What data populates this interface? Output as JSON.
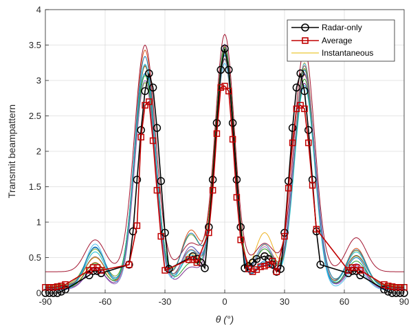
{
  "chart_data": {
    "type": "line",
    "title": "",
    "xlabel": "θ (°)",
    "ylabel": "Transmit beampattern",
    "xlim": [
      -90,
      90
    ],
    "ylim": [
      0,
      4
    ],
    "xticks": [
      -90,
      -60,
      -30,
      0,
      30,
      60,
      90
    ],
    "yticks": [
      0,
      0.5,
      1,
      1.5,
      2,
      2.5,
      3,
      3.5,
      4
    ],
    "grid": true,
    "legend_position": "top-right",
    "series": [
      {
        "name": "Radar-only",
        "color": "#000000",
        "marker": "circle",
        "points": [
          [
            -90,
            0.0
          ],
          [
            -88,
            0.0
          ],
          [
            -86,
            0.0
          ],
          [
            -84,
            0.0
          ],
          [
            -82,
            0.02
          ],
          [
            -80,
            0.05
          ],
          [
            -68,
            0.25
          ],
          [
            -66,
            0.31
          ],
          [
            -64,
            0.31
          ],
          [
            -62,
            0.28
          ],
          [
            -48,
            0.4
          ],
          [
            -46,
            0.87
          ],
          [
            -44,
            1.6
          ],
          [
            -42,
            2.3
          ],
          [
            -40,
            2.85
          ],
          [
            -38,
            3.1
          ],
          [
            -36,
            2.9
          ],
          [
            -34,
            2.33
          ],
          [
            -32,
            1.58
          ],
          [
            -30,
            0.85
          ],
          [
            -28,
            0.34
          ],
          [
            -16,
            0.52
          ],
          [
            -14,
            0.48
          ],
          [
            -12,
            0.43
          ],
          [
            -10,
            0.35
          ],
          [
            -8,
            0.93
          ],
          [
            -6,
            1.6
          ],
          [
            -4,
            2.4
          ],
          [
            -2,
            3.15
          ],
          [
            0,
            3.45
          ],
          [
            2,
            3.15
          ],
          [
            4,
            2.4
          ],
          [
            6,
            1.6
          ],
          [
            8,
            0.93
          ],
          [
            10,
            0.35
          ],
          [
            12,
            0.38
          ],
          [
            14,
            0.43
          ],
          [
            16,
            0.48
          ],
          [
            20,
            0.52
          ],
          [
            22,
            0.48
          ],
          [
            24,
            0.4
          ],
          [
            26,
            0.3
          ],
          [
            28,
            0.34
          ],
          [
            30,
            0.85
          ],
          [
            32,
            1.58
          ],
          [
            34,
            2.33
          ],
          [
            36,
            2.9
          ],
          [
            38,
            3.1
          ],
          [
            40,
            2.85
          ],
          [
            42,
            2.3
          ],
          [
            44,
            1.6
          ],
          [
            46,
            0.87
          ],
          [
            48,
            0.4
          ],
          [
            62,
            0.28
          ],
          [
            64,
            0.31
          ],
          [
            66,
            0.31
          ],
          [
            68,
            0.25
          ],
          [
            80,
            0.05
          ],
          [
            82,
            0.02
          ],
          [
            84,
            0.0
          ],
          [
            86,
            0.0
          ],
          [
            88,
            0.0
          ],
          [
            90,
            0.0
          ]
        ]
      },
      {
        "name": "Average",
        "color": "#c00000",
        "marker": "square",
        "points": [
          [
            -90,
            0.08
          ],
          [
            -88,
            0.08
          ],
          [
            -86,
            0.08
          ],
          [
            -84,
            0.09
          ],
          [
            -82,
            0.1
          ],
          [
            -80,
            0.12
          ],
          [
            -68,
            0.32
          ],
          [
            -66,
            0.36
          ],
          [
            -64,
            0.36
          ],
          [
            -62,
            0.32
          ],
          [
            -48,
            0.4
          ],
          [
            -44,
            0.95
          ],
          [
            -42,
            2.2
          ],
          [
            -40,
            2.65
          ],
          [
            -38,
            2.7
          ],
          [
            -36,
            2.15
          ],
          [
            -34,
            1.45
          ],
          [
            -32,
            0.8
          ],
          [
            -30,
            0.32
          ],
          [
            -18,
            0.47
          ],
          [
            -16,
            0.47
          ],
          [
            -14,
            0.43
          ],
          [
            -8,
            0.85
          ],
          [
            -6,
            1.45
          ],
          [
            -4,
            2.25
          ],
          [
            -2,
            2.9
          ],
          [
            0,
            2.92
          ],
          [
            2,
            2.85
          ],
          [
            4,
            2.17
          ],
          [
            6,
            1.35
          ],
          [
            8,
            0.75
          ],
          [
            12,
            0.34
          ],
          [
            14,
            0.3
          ],
          [
            16,
            0.33
          ],
          [
            18,
            0.37
          ],
          [
            20,
            0.38
          ],
          [
            22,
            0.4
          ],
          [
            24,
            0.45
          ],
          [
            26,
            0.3
          ],
          [
            30,
            0.8
          ],
          [
            32,
            1.48
          ],
          [
            34,
            2.12
          ],
          [
            36,
            2.6
          ],
          [
            38,
            2.65
          ],
          [
            40,
            2.6
          ],
          [
            42,
            2.12
          ],
          [
            44,
            1.52
          ],
          [
            46,
            0.9
          ],
          [
            62,
            0.32
          ],
          [
            64,
            0.36
          ],
          [
            66,
            0.36
          ],
          [
            68,
            0.32
          ],
          [
            80,
            0.12
          ],
          [
            82,
            0.1
          ],
          [
            84,
            0.09
          ],
          [
            86,
            0.08
          ],
          [
            88,
            0.08
          ],
          [
            90,
            0.08
          ]
        ]
      }
    ],
    "instantaneous": {
      "name": "Instantaneous",
      "legend_color": "#e6b800",
      "curve_colors": [
        "#0072bd",
        "#d95319",
        "#edb120",
        "#7e2f8e",
        "#77ac30",
        "#4dbeee",
        "#a2142f",
        "#1f77b4",
        "#2ca02c",
        "#8c564b",
        "#9467bd",
        "#17becf"
      ],
      "main_lobes": [
        {
          "center": -40,
          "peaks": [
            3.05,
            3.35,
            3.1,
            3.15,
            2.85,
            3.05,
            3.2,
            3.25,
            3.0,
            3.1,
            2.95,
            3.15
          ],
          "widths": [
            5.4,
            5.1,
            5.0,
            5.2,
            5.3,
            5.0,
            5.3,
            5.2,
            5.4,
            5.0,
            5.1,
            5.2
          ]
        },
        {
          "center": 0,
          "peaks": [
            3.25,
            3.4,
            3.3,
            3.45,
            3.3,
            3.2,
            3.35,
            3.3,
            3.4,
            3.2,
            3.3,
            3.28
          ],
          "widths": [
            4.7,
            4.9,
            4.6,
            4.8,
            4.7,
            4.9,
            4.8,
            4.7,
            4.9,
            4.6,
            4.8,
            4.7
          ]
        },
        {
          "center": 40,
          "peaks": [
            3.1,
            3.0,
            3.15,
            2.9,
            3.05,
            3.2,
            3.15,
            3.0,
            2.95,
            3.1,
            3.05,
            2.85
          ],
          "widths": [
            5.1,
            5.2,
            5.0,
            5.3,
            5.2,
            5.0,
            5.1,
            5.4,
            5.2,
            5.0,
            5.3,
            5.1
          ]
        }
      ],
      "side_lobes": [
        {
          "center": -65,
          "peaks": [
            0.6,
            0.35,
            0.4,
            0.3,
            0.5,
            0.65,
            0.45,
            0.55,
            0.35,
            0.4,
            0.3,
            0.5
          ]
        },
        {
          "center": -17,
          "peaks": [
            0.6,
            0.8,
            0.45,
            0.3,
            0.7,
            0.55,
            0.4,
            0.75,
            0.35,
            0.5,
            0.6,
            0.45
          ]
        },
        {
          "center": 20,
          "peaks": [
            0.4,
            0.6,
            0.75,
            0.35,
            0.5,
            0.65,
            0.4,
            0.3,
            0.55,
            0.45,
            0.6,
            0.35
          ]
        },
        {
          "center": 66,
          "peaks": [
            0.45,
            0.55,
            0.5,
            0.35,
            0.4,
            0.3,
            0.48,
            0.52,
            0.38,
            0.42,
            0.33,
            0.5
          ]
        }
      ],
      "floor": [
        0.05,
        0.08,
        0.1,
        0.06,
        0.12,
        0.04,
        0.3,
        0.09,
        0.07,
        0.11,
        0.05,
        0.08
      ]
    }
  }
}
